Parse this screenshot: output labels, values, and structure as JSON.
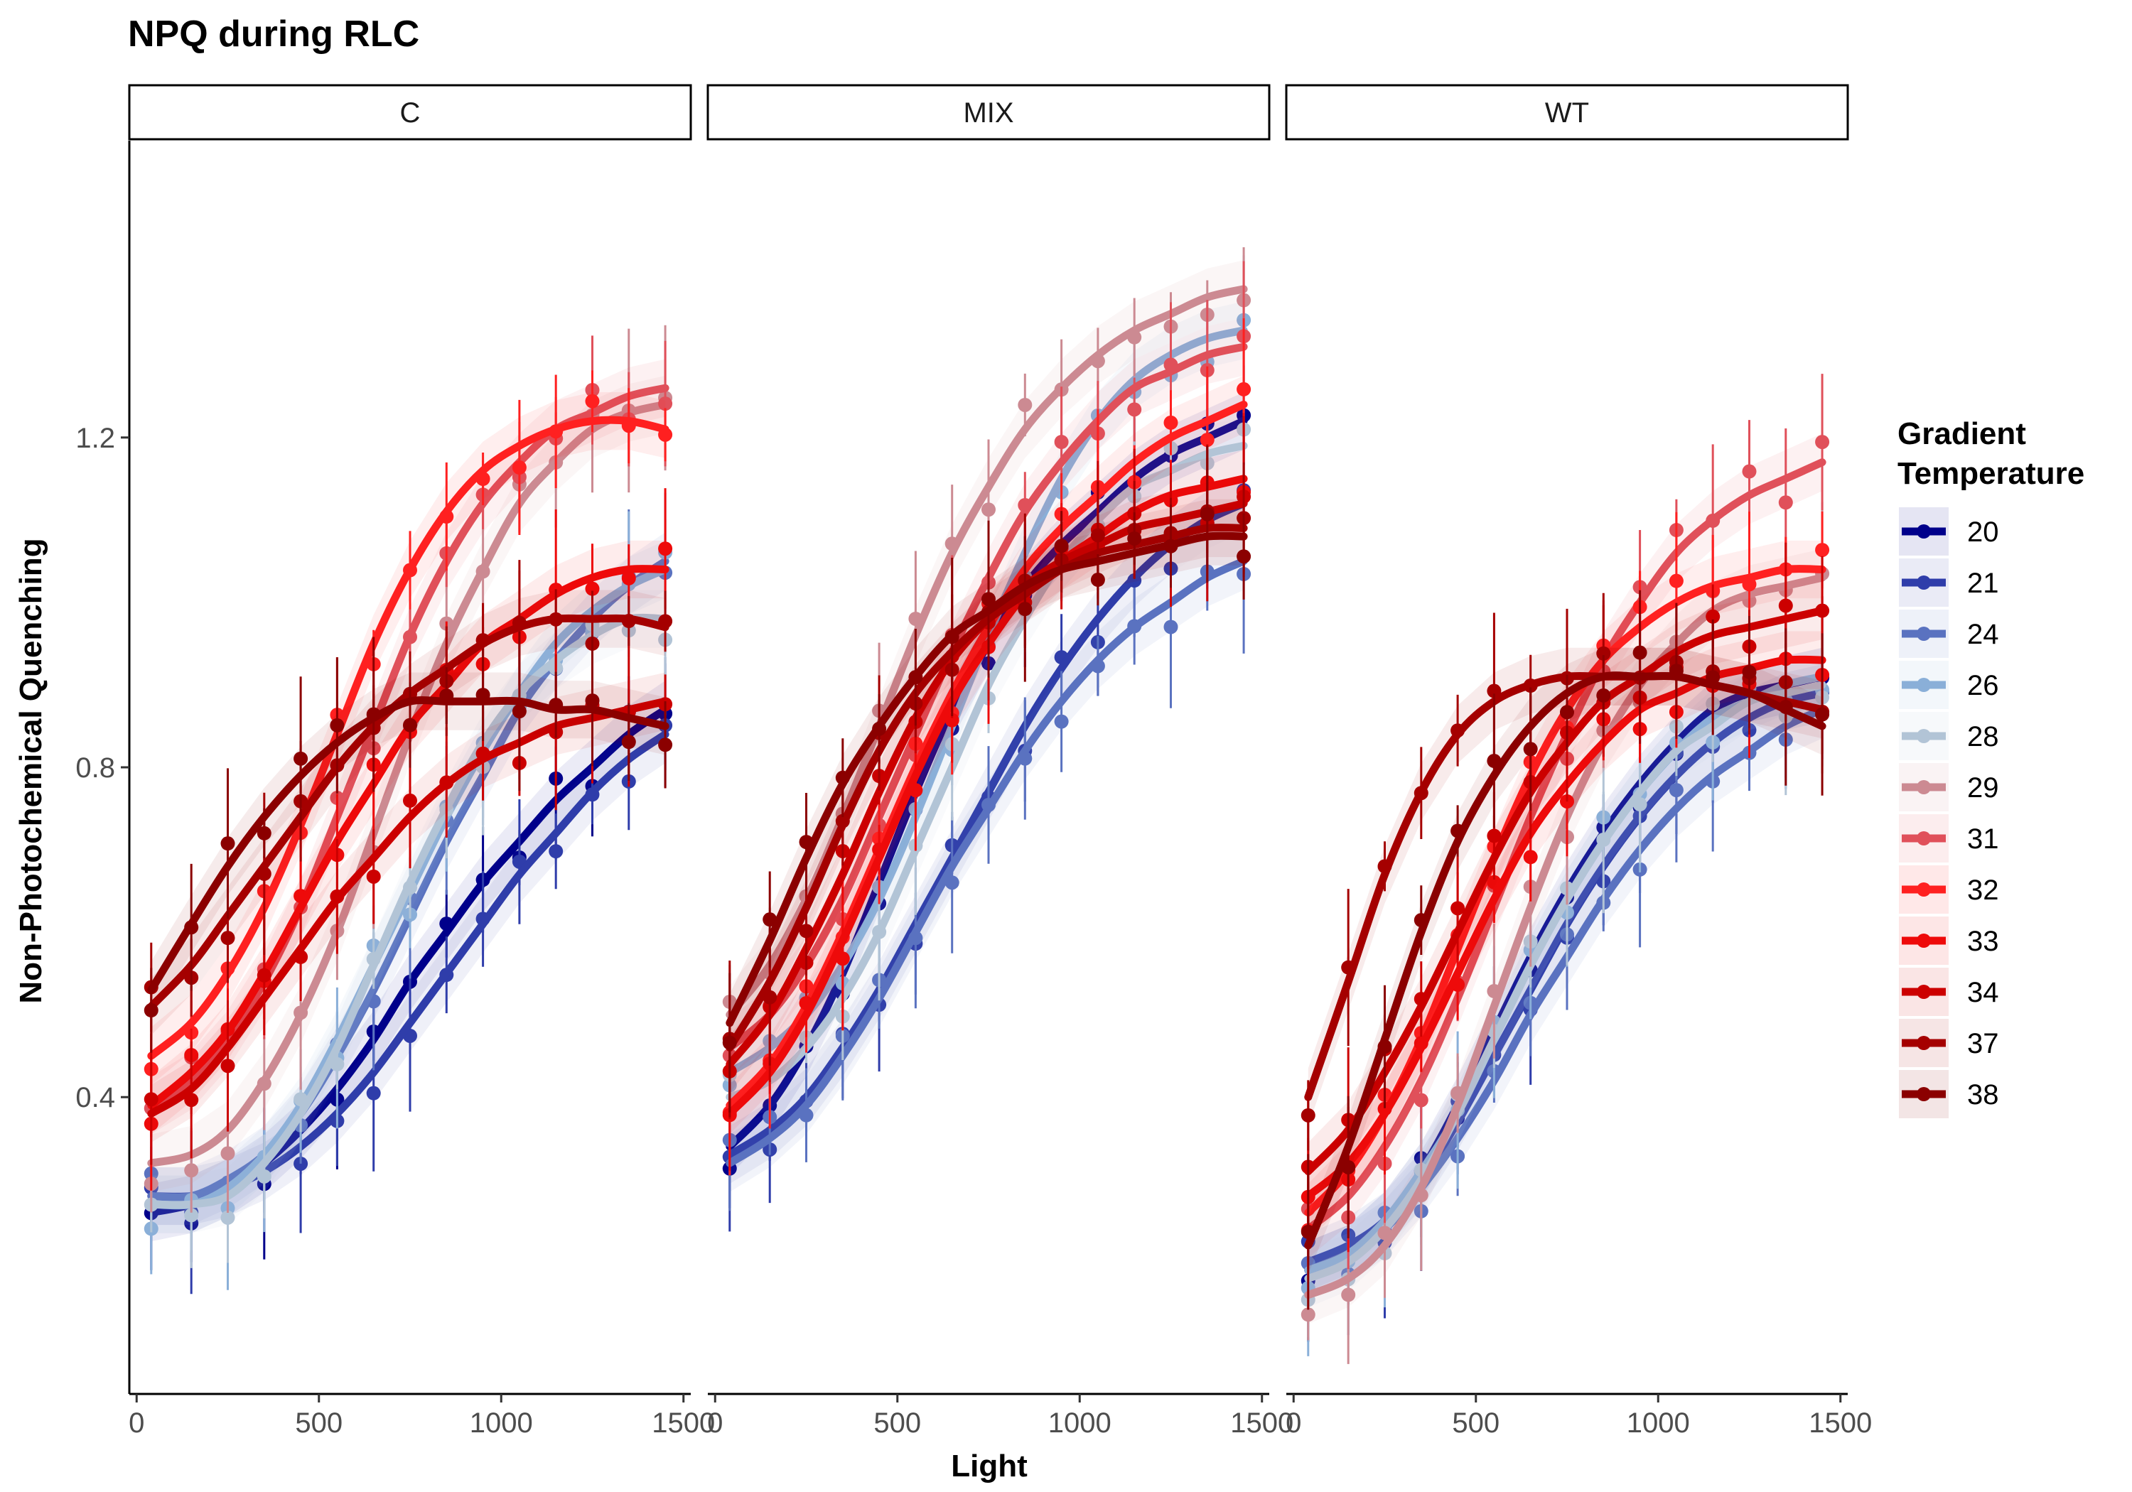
{
  "chart_data": {
    "type": "line",
    "title": "NPQ during RLC",
    "xlabel": "Light",
    "ylabel": "Non-Photochemical Quenching",
    "xlim": [
      -20,
      1520
    ],
    "ylim": [
      0.04,
      1.56
    ],
    "xticks": [
      0,
      500,
      1000,
      1500
    ],
    "xtick_labels": [
      "0",
      "500",
      "1000",
      "1500"
    ],
    "yticks": [
      0.4,
      0.8,
      1.2
    ],
    "ytick_labels": [
      "0.4",
      "0.8",
      "1.2"
    ],
    "grid": false,
    "legend": {
      "title": "Gradient\nTemperature",
      "position": "right"
    },
    "x": [
      40,
      150,
      250,
      350,
      450,
      550,
      650,
      750,
      850,
      950,
      1050,
      1150,
      1250,
      1350,
      1450
    ],
    "series": [
      {
        "name": "20",
        "color": "#00008B"
      },
      {
        "name": "21",
        "color": "#2F3DAA"
      },
      {
        "name": "24",
        "color": "#5A72C0"
      },
      {
        "name": "26",
        "color": "#8AAFD8"
      },
      {
        "name": "28",
        "color": "#B2C4D6"
      },
      {
        "name": "29",
        "color": "#CC8A92"
      },
      {
        "name": "31",
        "color": "#E0505A"
      },
      {
        "name": "32",
        "color": "#FF2020"
      },
      {
        "name": "33",
        "color": "#EE0A0A"
      },
      {
        "name": "34",
        "color": "#CC0000"
      },
      {
        "name": "37",
        "color": "#A50000"
      },
      {
        "name": "38",
        "color": "#8B0000"
      }
    ],
    "panels": [
      {
        "label": "C",
        "curves": {
          "20": [
            0.26,
            0.27,
            0.29,
            0.32,
            0.36,
            0.41,
            0.47,
            0.54,
            0.6,
            0.66,
            0.71,
            0.76,
            0.8,
            0.84,
            0.87
          ],
          "21": [
            0.28,
            0.28,
            0.29,
            0.31,
            0.34,
            0.38,
            0.43,
            0.49,
            0.55,
            0.61,
            0.67,
            0.72,
            0.77,
            0.81,
            0.84
          ],
          "24": [
            0.28,
            0.28,
            0.3,
            0.33,
            0.38,
            0.45,
            0.53,
            0.62,
            0.71,
            0.79,
            0.87,
            0.93,
            0.98,
            1.02,
            1.05
          ],
          "26": [
            0.27,
            0.27,
            0.29,
            0.33,
            0.39,
            0.47,
            0.56,
            0.65,
            0.74,
            0.82,
            0.89,
            0.95,
            0.99,
            1.02,
            1.04
          ],
          "28": [
            0.27,
            0.27,
            0.28,
            0.32,
            0.38,
            0.46,
            0.56,
            0.66,
            0.75,
            0.83,
            0.89,
            0.93,
            0.96,
            0.98,
            0.98
          ],
          "29": [
            0.32,
            0.33,
            0.36,
            0.42,
            0.5,
            0.6,
            0.72,
            0.84,
            0.95,
            1.04,
            1.12,
            1.17,
            1.21,
            1.23,
            1.24
          ],
          "31": [
            0.39,
            0.42,
            0.47,
            0.54,
            0.63,
            0.74,
            0.85,
            0.96,
            1.05,
            1.12,
            1.17,
            1.21,
            1.23,
            1.25,
            1.26
          ],
          "32": [
            0.45,
            0.49,
            0.55,
            0.63,
            0.73,
            0.84,
            0.95,
            1.04,
            1.11,
            1.16,
            1.19,
            1.21,
            1.22,
            1.22,
            1.21
          ],
          "33": [
            0.39,
            0.43,
            0.48,
            0.55,
            0.63,
            0.71,
            0.78,
            0.85,
            0.9,
            0.95,
            0.98,
            1.01,
            1.03,
            1.04,
            1.04
          ],
          "34": [
            0.38,
            0.41,
            0.46,
            0.52,
            0.58,
            0.64,
            0.69,
            0.74,
            0.78,
            0.81,
            0.83,
            0.85,
            0.86,
            0.87,
            0.88
          ],
          "37": [
            0.51,
            0.56,
            0.62,
            0.68,
            0.74,
            0.8,
            0.85,
            0.89,
            0.92,
            0.95,
            0.97,
            0.98,
            0.98,
            0.98,
            0.97
          ],
          "38": [
            0.53,
            0.61,
            0.68,
            0.74,
            0.79,
            0.83,
            0.86,
            0.88,
            0.88,
            0.88,
            0.88,
            0.87,
            0.87,
            0.86,
            0.85
          ]
        }
      },
      {
        "label": "MIX",
        "curves": {
          "20": [
            0.34,
            0.39,
            0.46,
            0.55,
            0.66,
            0.77,
            0.87,
            0.95,
            1.02,
            1.07,
            1.11,
            1.15,
            1.18,
            1.2,
            1.22
          ],
          "21": [
            0.33,
            0.36,
            0.4,
            0.46,
            0.53,
            0.61,
            0.69,
            0.77,
            0.85,
            0.92,
            0.98,
            1.03,
            1.07,
            1.1,
            1.12
          ],
          "24": [
            0.32,
            0.35,
            0.39,
            0.45,
            0.52,
            0.6,
            0.68,
            0.75,
            0.82,
            0.88,
            0.93,
            0.97,
            1.0,
            1.03,
            1.05
          ],
          "26": [
            0.43,
            0.46,
            0.5,
            0.56,
            0.64,
            0.74,
            0.85,
            0.96,
            1.06,
            1.15,
            1.22,
            1.27,
            1.3,
            1.32,
            1.33
          ],
          "28": [
            0.4,
            0.42,
            0.46,
            0.52,
            0.6,
            0.7,
            0.8,
            0.9,
            0.98,
            1.05,
            1.1,
            1.14,
            1.16,
            1.18,
            1.19
          ],
          "29": [
            0.5,
            0.56,
            0.64,
            0.74,
            0.85,
            0.96,
            1.06,
            1.14,
            1.21,
            1.26,
            1.3,
            1.33,
            1.35,
            1.37,
            1.38
          ],
          "31": [
            0.46,
            0.5,
            0.56,
            0.64,
            0.74,
            0.84,
            0.94,
            1.03,
            1.11,
            1.17,
            1.22,
            1.26,
            1.28,
            1.3,
            1.31
          ],
          "32": [
            0.39,
            0.44,
            0.51,
            0.6,
            0.7,
            0.8,
            0.89,
            0.97,
            1.04,
            1.09,
            1.13,
            1.17,
            1.2,
            1.22,
            1.24
          ],
          "33": [
            0.38,
            0.43,
            0.5,
            0.59,
            0.69,
            0.79,
            0.88,
            0.95,
            1.01,
            1.05,
            1.08,
            1.11,
            1.13,
            1.14,
            1.15
          ],
          "34": [
            0.44,
            0.5,
            0.58,
            0.67,
            0.77,
            0.86,
            0.93,
            0.98,
            1.02,
            1.05,
            1.07,
            1.09,
            1.1,
            1.11,
            1.12
          ],
          "37": [
            0.46,
            0.54,
            0.63,
            0.73,
            0.82,
            0.89,
            0.94,
            0.98,
            1.01,
            1.04,
            1.06,
            1.07,
            1.08,
            1.09,
            1.09
          ],
          "38": [
            0.49,
            0.59,
            0.69,
            0.78,
            0.85,
            0.91,
            0.96,
            0.99,
            1.02,
            1.04,
            1.05,
            1.06,
            1.07,
            1.08,
            1.08
          ]
        }
      },
      {
        "label": "WT",
        "curves": {
          "20": [
            0.19,
            0.21,
            0.25,
            0.31,
            0.39,
            0.48,
            0.57,
            0.65,
            0.72,
            0.78,
            0.83,
            0.87,
            0.89,
            0.9,
            0.91
          ],
          "21": [
            0.2,
            0.22,
            0.25,
            0.3,
            0.37,
            0.45,
            0.53,
            0.61,
            0.68,
            0.74,
            0.79,
            0.83,
            0.86,
            0.88,
            0.89
          ],
          "24": [
            0.19,
            0.21,
            0.24,
            0.29,
            0.35,
            0.42,
            0.5,
            0.57,
            0.64,
            0.7,
            0.75,
            0.79,
            0.82,
            0.85,
            0.87
          ],
          "26": [
            0.19,
            0.21,
            0.25,
            0.31,
            0.38,
            0.47,
            0.56,
            0.64,
            0.71,
            0.77,
            0.82,
            0.86,
            0.88,
            0.9,
            0.91
          ],
          "28": [
            0.18,
            0.2,
            0.24,
            0.3,
            0.38,
            0.47,
            0.56,
            0.64,
            0.71,
            0.77,
            0.82,
            0.85,
            0.88,
            0.89,
            0.9
          ],
          "29": [
            0.16,
            0.18,
            0.22,
            0.29,
            0.39,
            0.51,
            0.63,
            0.74,
            0.83,
            0.9,
            0.95,
            0.99,
            1.01,
            1.02,
            1.03
          ],
          "31": [
            0.24,
            0.28,
            0.34,
            0.42,
            0.52,
            0.63,
            0.74,
            0.84,
            0.93,
            1.0,
            1.06,
            1.1,
            1.13,
            1.15,
            1.17
          ],
          "32": [
            0.26,
            0.31,
            0.38,
            0.47,
            0.58,
            0.69,
            0.79,
            0.87,
            0.93,
            0.97,
            1.0,
            1.02,
            1.03,
            1.04,
            1.04
          ],
          "33": [
            0.28,
            0.32,
            0.38,
            0.46,
            0.55,
            0.64,
            0.72,
            0.78,
            0.83,
            0.87,
            0.89,
            0.91,
            0.92,
            0.93,
            0.93
          ],
          "34": [
            0.31,
            0.36,
            0.43,
            0.51,
            0.6,
            0.69,
            0.77,
            0.83,
            0.88,
            0.91,
            0.94,
            0.96,
            0.97,
            0.98,
            0.99
          ],
          "37": [
            0.4,
            0.54,
            0.67,
            0.77,
            0.84,
            0.88,
            0.9,
            0.91,
            0.91,
            0.91,
            0.91,
            0.9,
            0.89,
            0.88,
            0.87
          ],
          "38": [
            0.22,
            0.34,
            0.47,
            0.6,
            0.71,
            0.79,
            0.85,
            0.89,
            0.91,
            0.91,
            0.91,
            0.9,
            0.89,
            0.87,
            0.85
          ]
        }
      }
    ]
  }
}
